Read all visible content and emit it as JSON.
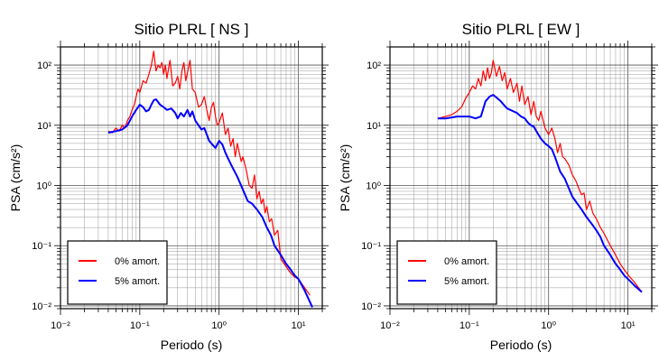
{
  "chart_data": [
    {
      "type": "line",
      "title": "Sitio PLRL [ NS ]",
      "xlabel": "Periodo (s)",
      "ylabel": "PSA (cm/s²)",
      "x_scale": "log",
      "y_scale": "log",
      "xlim": [
        0.01,
        20
      ],
      "ylim": [
        0.009,
        200
      ],
      "grid": true,
      "legend_position": "bottom-left",
      "x_tick_labels": [
        "10⁻²",
        "10⁻¹",
        "10⁰",
        "10¹"
      ],
      "y_tick_labels": [
        "10⁻²",
        "10⁻¹",
        "10⁰",
        "10¹",
        "10²"
      ],
      "series": [
        {
          "name": "0% amort.",
          "color": "#ff0000",
          "x": [
            0.04,
            0.045,
            0.05,
            0.055,
            0.06,
            0.065,
            0.07,
            0.075,
            0.08,
            0.085,
            0.09,
            0.095,
            0.1,
            0.11,
            0.12,
            0.13,
            0.14,
            0.15,
            0.16,
            0.17,
            0.18,
            0.19,
            0.2,
            0.21,
            0.22,
            0.24,
            0.26,
            0.28,
            0.3,
            0.32,
            0.34,
            0.36,
            0.38,
            0.4,
            0.43,
            0.46,
            0.5,
            0.55,
            0.6,
            0.65,
            0.7,
            0.75,
            0.8,
            0.85,
            0.9,
            0.95,
            1.0,
            1.1,
            1.2,
            1.3,
            1.4,
            1.5,
            1.6,
            1.7,
            1.8,
            1.9,
            2.0,
            2.2,
            2.4,
            2.6,
            2.8,
            3.0,
            3.2,
            3.4,
            3.6,
            3.8,
            4.0,
            4.3,
            4.6,
            5.0,
            5.5,
            6.0,
            7.0,
            8.0,
            9.0,
            10.0,
            12.0,
            14.0
          ],
          "y": [
            8,
            7.5,
            9,
            8,
            10,
            9,
            12,
            14,
            18,
            22,
            30,
            40,
            35,
            55,
            50,
            70,
            100,
            170,
            80,
            100,
            90,
            110,
            70,
            100,
            60,
            120,
            45,
            50,
            65,
            40,
            80,
            110,
            55,
            75,
            120,
            40,
            35,
            20,
            22,
            30,
            18,
            12,
            20,
            24,
            14,
            10,
            11,
            16,
            7,
            9,
            4.5,
            6,
            3,
            5,
            3.5,
            2.5,
            3,
            1.8,
            1.0,
            0.9,
            1.5,
            0.6,
            0.8,
            0.5,
            0.6,
            0.35,
            0.45,
            0.25,
            0.28,
            0.15,
            0.18,
            0.06,
            0.045,
            0.035,
            0.03,
            0.028,
            0.02,
            0.015
          ]
        },
        {
          "name": "5% amort.",
          "color": "#0000ff",
          "x": [
            0.04,
            0.05,
            0.06,
            0.07,
            0.08,
            0.09,
            0.1,
            0.11,
            0.12,
            0.13,
            0.14,
            0.15,
            0.16,
            0.18,
            0.2,
            0.22,
            0.25,
            0.28,
            0.3,
            0.33,
            0.36,
            0.4,
            0.43,
            0.46,
            0.5,
            0.55,
            0.6,
            0.65,
            0.7,
            0.75,
            0.8,
            0.9,
            1.0,
            1.1,
            1.2,
            1.3,
            1.5,
            1.7,
            2.0,
            2.3,
            2.6,
            3.0,
            3.5,
            4.0,
            4.5,
            5.0,
            6.0,
            7.0,
            8.0,
            9.0,
            10.0,
            12.0,
            15.0
          ],
          "y": [
            7.5,
            8,
            8.5,
            10,
            14,
            18,
            22,
            20,
            17,
            18,
            22,
            26,
            27,
            22,
            20,
            18,
            19,
            16,
            13,
            16,
            14,
            18,
            14,
            17,
            12,
            10,
            8.5,
            9,
            7,
            5.5,
            5,
            4.2,
            5.5,
            4.8,
            3.5,
            2.8,
            1.9,
            1.4,
            0.85,
            0.55,
            0.5,
            0.4,
            0.3,
            0.2,
            0.15,
            0.1,
            0.07,
            0.05,
            0.04,
            0.032,
            0.028,
            0.018,
            0.0095
          ]
        }
      ]
    },
    {
      "type": "line",
      "title": "Sitio PLRL [ EW ]",
      "xlabel": "Periodo (s)",
      "ylabel": "PSA (cm/s²)",
      "x_scale": "log",
      "y_scale": "log",
      "xlim": [
        0.01,
        20
      ],
      "ylim": [
        0.009,
        200
      ],
      "grid": true,
      "legend_position": "bottom-left",
      "x_tick_labels": [
        "10⁻²",
        "10⁻¹",
        "10⁰",
        "10¹"
      ],
      "y_tick_labels": [
        "10⁻²",
        "10⁻¹",
        "10⁰",
        "10¹",
        "10²"
      ],
      "series": [
        {
          "name": "0% amort.",
          "color": "#ff0000",
          "x": [
            0.04,
            0.05,
            0.06,
            0.07,
            0.08,
            0.09,
            0.1,
            0.11,
            0.12,
            0.13,
            0.14,
            0.15,
            0.16,
            0.17,
            0.18,
            0.19,
            0.2,
            0.22,
            0.24,
            0.26,
            0.28,
            0.3,
            0.33,
            0.36,
            0.4,
            0.43,
            0.46,
            0.5,
            0.55,
            0.6,
            0.65,
            0.7,
            0.75,
            0.8,
            0.9,
            1.0,
            1.1,
            1.2,
            1.3,
            1.4,
            1.5,
            1.6,
            1.8,
            2.0,
            2.2,
            2.4,
            2.6,
            2.8,
            3.0,
            3.3,
            3.6,
            4.0,
            4.5,
            5.0,
            6.0,
            7.0,
            8.0,
            9.0,
            10.0,
            12.0,
            15.0
          ],
          "y": [
            13,
            14,
            15,
            17,
            20,
            28,
            35,
            45,
            40,
            60,
            45,
            80,
            55,
            90,
            60,
            75,
            120,
            65,
            95,
            55,
            75,
            40,
            60,
            35,
            50,
            25,
            45,
            22,
            30,
            15,
            25,
            14,
            12,
            17,
            9,
            7,
            9,
            6,
            3.5,
            5,
            3,
            2.8,
            2.2,
            1.5,
            1.2,
            0.9,
            0.7,
            0.75,
            0.4,
            0.55,
            0.35,
            0.28,
            0.2,
            0.16,
            0.1,
            0.07,
            0.05,
            0.04,
            0.033,
            0.025,
            0.017
          ]
        },
        {
          "name": "5% amort.",
          "color": "#0000ff",
          "x": [
            0.04,
            0.05,
            0.06,
            0.07,
            0.08,
            0.09,
            0.1,
            0.12,
            0.14,
            0.16,
            0.18,
            0.2,
            0.22,
            0.25,
            0.28,
            0.3,
            0.33,
            0.36,
            0.4,
            0.45,
            0.5,
            0.55,
            0.6,
            0.65,
            0.7,
            0.8,
            0.9,
            1.0,
            1.1,
            1.2,
            1.4,
            1.6,
            1.8,
            2.0,
            2.3,
            2.6,
            3.0,
            3.5,
            4.0,
            4.5,
            5.0,
            6.0,
            7.0,
            8.0,
            9.0,
            10.0,
            12.0,
            15.0
          ],
          "y": [
            13,
            13,
            13.5,
            14,
            14,
            14,
            14,
            13,
            14,
            25,
            30,
            32,
            29,
            25,
            21,
            19,
            18,
            17,
            16,
            14,
            13,
            11,
            10,
            9.5,
            8,
            6,
            5,
            4.5,
            4,
            3,
            1.7,
            1.3,
            0.9,
            0.65,
            0.5,
            0.4,
            0.3,
            0.23,
            0.18,
            0.14,
            0.1,
            0.07,
            0.05,
            0.04,
            0.032,
            0.028,
            0.022,
            0.017
          ]
        }
      ]
    }
  ]
}
